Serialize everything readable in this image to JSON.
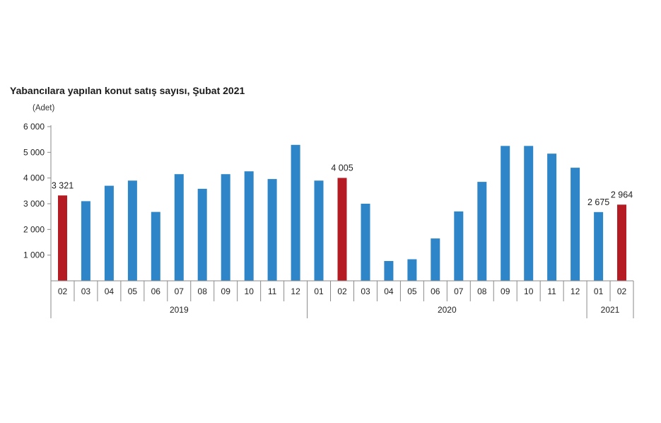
{
  "chart_data": {
    "type": "bar",
    "title": "Yabancılara yapılan konut satış sayısı, Şubat 2021",
    "ylabel": "(Adet)",
    "xlabel": "",
    "ylim": [
      0,
      6000
    ],
    "yticks": [
      1000,
      2000,
      3000,
      4000,
      5000,
      6000
    ],
    "ytick_labels": [
      "1 000",
      "2 000",
      "3 000",
      "4 000",
      "5 000",
      "6 000"
    ],
    "grid": false,
    "legend": "none",
    "categories": [
      "02",
      "03",
      "04",
      "05",
      "06",
      "07",
      "08",
      "09",
      "10",
      "11",
      "12",
      "01",
      "02",
      "03",
      "04",
      "05",
      "06",
      "07",
      "08",
      "09",
      "10",
      "11",
      "12",
      "01",
      "02"
    ],
    "values": [
      3321,
      3100,
      3700,
      3900,
      2680,
      4150,
      3580,
      4150,
      4260,
      3960,
      5290,
      3900,
      4005,
      3000,
      770,
      840,
      1650,
      2700,
      3850,
      5250,
      5250,
      4950,
      4400,
      2675,
      2964
    ],
    "highlighted": [
      true,
      false,
      false,
      false,
      false,
      false,
      false,
      false,
      false,
      false,
      false,
      false,
      true,
      false,
      false,
      false,
      false,
      false,
      false,
      false,
      false,
      false,
      false,
      false,
      true
    ],
    "data_labels": [
      {
        "index": 0,
        "text": "3 321"
      },
      {
        "index": 12,
        "text": "4 005"
      },
      {
        "index": 23,
        "text": "2 675"
      },
      {
        "index": 24,
        "text": "2 964"
      }
    ],
    "year_groups": [
      {
        "label": "2019",
        "start": 0,
        "end": 10
      },
      {
        "label": "2020",
        "start": 11,
        "end": 22
      },
      {
        "label": "2021",
        "start": 23,
        "end": 24
      }
    ],
    "colors": {
      "bar": "#2e86c8",
      "highlight": "#b51b22",
      "axis": "#8a8a8a"
    }
  }
}
